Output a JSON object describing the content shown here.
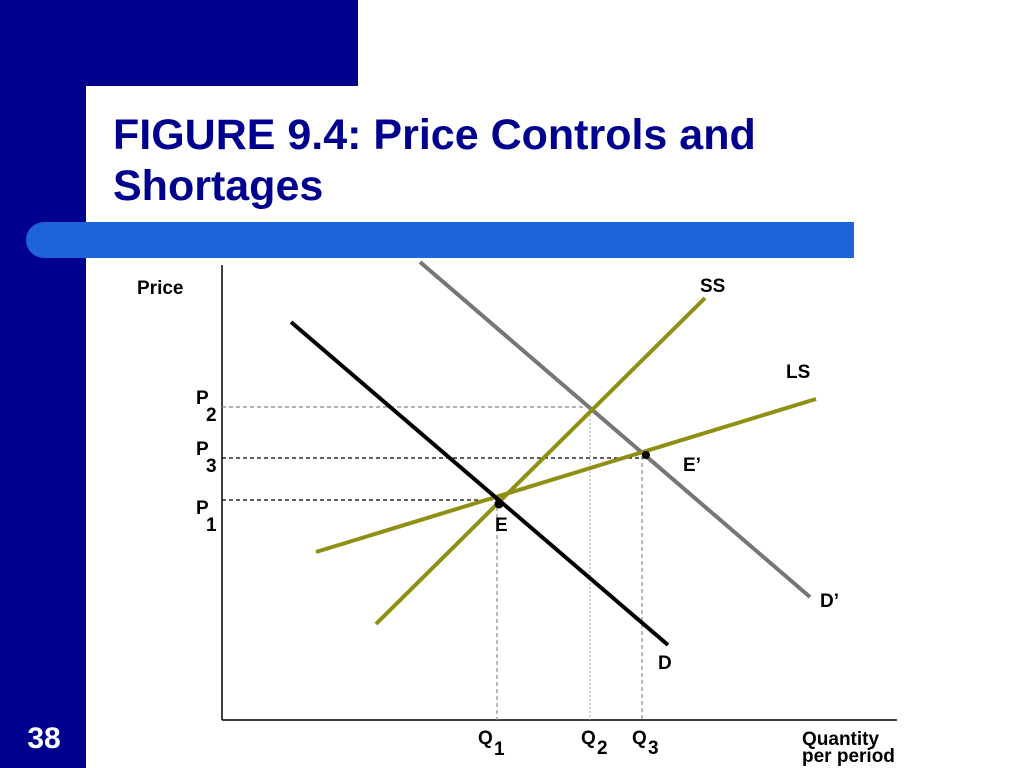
{
  "slide": {
    "title": "FIGURE 9.4: Price Controls and Shortages",
    "page_number": "38"
  },
  "colors": {
    "frame_blue": "#00008f",
    "accent_blue": "#1f63dc",
    "supply_olive": "#8f8f14",
    "shifted_demand_gray": "#767676",
    "demand_black": "#000000"
  },
  "diagram": {
    "y_axis_label": "Price",
    "x_axis_label_line1": "Quantity",
    "x_axis_label_line2": "per period",
    "curves": {
      "ss": "SS",
      "ls": "LS",
      "d": "D",
      "d_prime": "D’"
    },
    "points": {
      "e": "E",
      "e_prime": "E’"
    },
    "price_levels": [
      {
        "letter": "P",
        "sub": "2"
      },
      {
        "letter": "P",
        "sub": "3"
      },
      {
        "letter": "P",
        "sub": "1"
      }
    ],
    "quantity_levels": [
      {
        "letter": "Q",
        "sub": "1"
      },
      {
        "letter": "Q",
        "sub": "2"
      },
      {
        "letter": "Q",
        "sub": "3"
      }
    ]
  }
}
